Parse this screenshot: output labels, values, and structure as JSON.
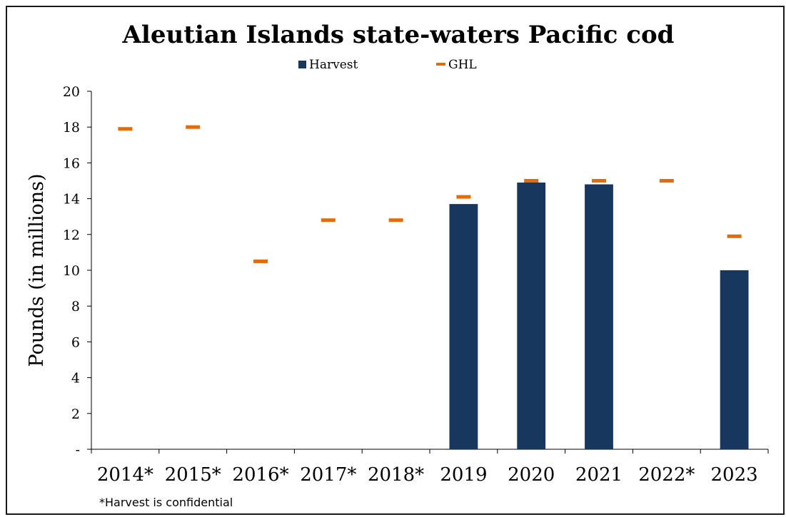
{
  "chart_data": {
    "type": "bar",
    "title": "Aleutian Islands state-waters Pacific cod",
    "ylabel": "Pounds (in millions)",
    "xlabel": "",
    "categories": [
      "2014*",
      "2015*",
      "2016*",
      "2017*",
      "2018*",
      "2019",
      "2020",
      "2021",
      "2022*",
      "2023"
    ],
    "ylim": [
      0,
      20
    ],
    "y_ticks": [
      "-",
      "2",
      "4",
      "6",
      "8",
      "10",
      "12",
      "14",
      "16",
      "18",
      "20"
    ],
    "y_tick_values": [
      0,
      2,
      4,
      6,
      8,
      10,
      12,
      14,
      16,
      18,
      20
    ],
    "series": [
      {
        "name": "Harvest",
        "kind": "bar",
        "color": "#17375e",
        "values": [
          null,
          null,
          null,
          null,
          null,
          13.7,
          14.9,
          14.8,
          null,
          10.0
        ]
      },
      {
        "name": "GHL",
        "kind": "marker",
        "color": "#e36c09",
        "values": [
          17.9,
          18.0,
          10.5,
          12.8,
          12.8,
          14.1,
          15.0,
          15.0,
          15.0,
          11.9
        ]
      }
    ],
    "legend_position": "top-center",
    "grid": false,
    "footnote": "*Harvest is confidential"
  }
}
